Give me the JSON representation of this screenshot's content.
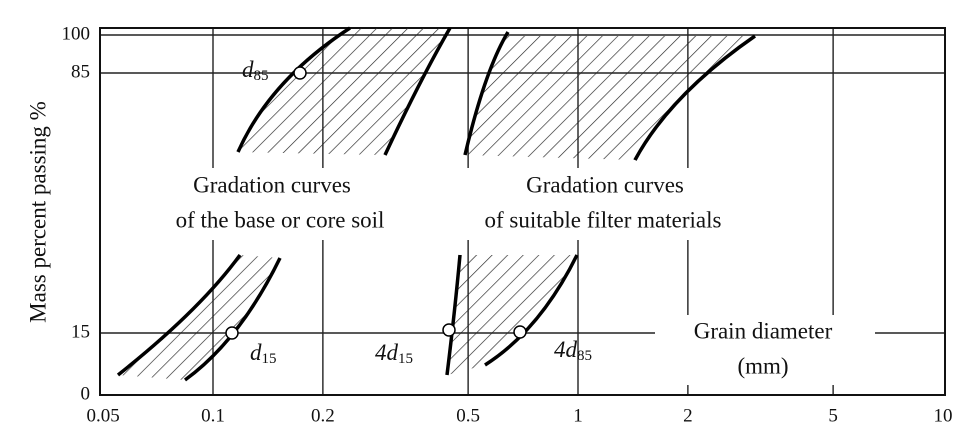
{
  "y_axis": {
    "label": "Mass percent passing %",
    "ticks": [
      100,
      85,
      15,
      0
    ]
  },
  "x_axis": {
    "label": "Grain diameter",
    "unit": "(mm)",
    "scale": "log",
    "ticks": [
      {
        "value": 0.05,
        "label": "0.05"
      },
      {
        "value": 0.1,
        "label": "0.1"
      },
      {
        "value": 0.2,
        "label": "0.2"
      },
      {
        "value": 0.5,
        "label": "0.5"
      },
      1,
      2,
      5,
      10
    ]
  },
  "regions": [
    {
      "line1": "Gradation curves",
      "line2": "of the base or core soil"
    },
    {
      "line1": "Gradation curves",
      "line2": "of suitable filter materials"
    }
  ],
  "points": [
    {
      "base": "d",
      "sub": "85"
    },
    {
      "base": "d",
      "sub": "15"
    },
    {
      "base": "4d",
      "sub": "15"
    },
    {
      "base": "4d",
      "sub": "85"
    }
  ]
}
